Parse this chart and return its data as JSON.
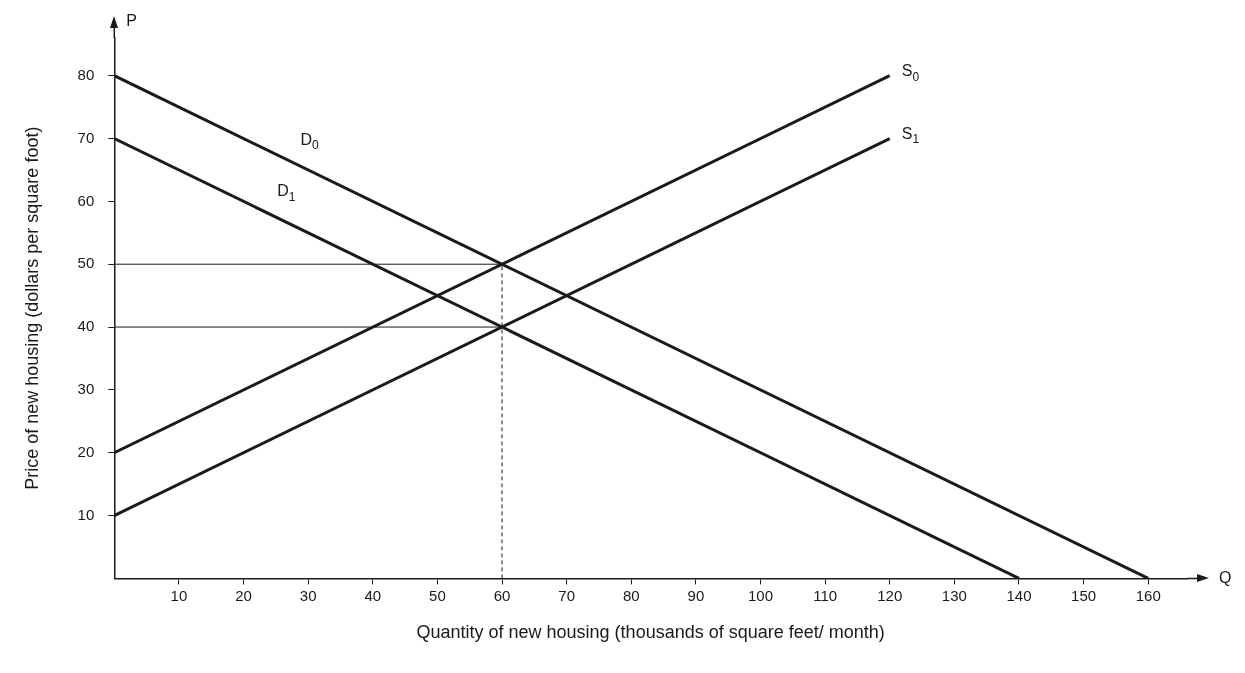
{
  "chart_data": {
    "type": "line",
    "xlabel": "Quantity of new housing (thousands of square feet/ month)",
    "ylabel": "Price of new housing (dollars per square foot)",
    "xlim": [
      0,
      166
    ],
    "ylim": [
      0,
      86
    ],
    "xticks": [
      10,
      20,
      30,
      40,
      50,
      60,
      70,
      80,
      90,
      100,
      110,
      120,
      130,
      140,
      150,
      160
    ],
    "yticks": [
      10,
      20,
      30,
      40,
      50,
      60,
      70,
      80
    ],
    "grid": false,
    "legend": false,
    "marker": "none",
    "annotations": [
      "P",
      "Q"
    ],
    "series": [
      {
        "name": "D$_{0}$",
        "color": "#1a1a1a",
        "x": [
          0,
          160
        ],
        "values": [
          80,
          0
        ]
      },
      {
        "name": "D$_{1}$",
        "color": "#1a1a1a",
        "x": [
          0,
          140
        ],
        "values": [
          70,
          0
        ]
      },
      {
        "name": "S$_{0}$",
        "color": "#1a1a1a",
        "x": [
          0,
          120
        ],
        "values": [
          20,
          80
        ]
      },
      {
        "name": "S$_{1}$",
        "color": "#1a1a1a",
        "x": [
          0,
          120
        ],
        "values": [
          10,
          70
        ]
      },
      {
        "color": "#1a1a1a",
        "x": [
          0,
          60
        ],
        "values": [
          50,
          50
        ]
      },
      {
        "color": "#1a1a1a",
        "x": [
          0,
          60
        ],
        "values": [
          40,
          40
        ]
      },
      {
        "color": "#1a1a1a",
        "x": [
          60,
          60
        ],
        "values": [
          0,
          50
        ],
        "line_style": "dashed"
      }
    ]
  }
}
